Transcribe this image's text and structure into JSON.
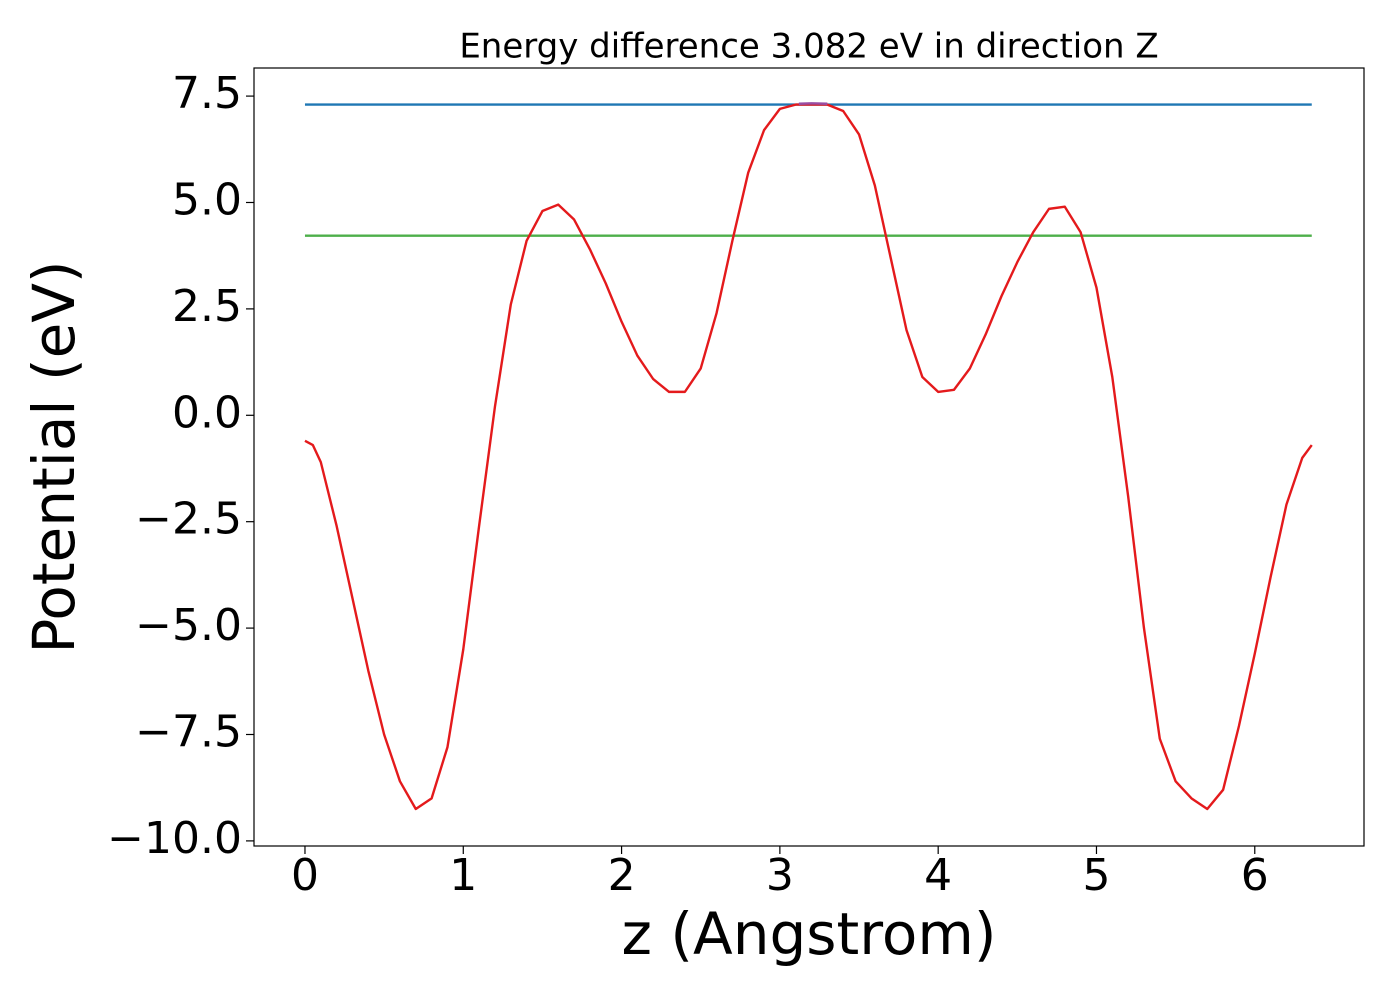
{
  "chart_data": {
    "type": "line",
    "title": "Energy difference 3.082 eV in direction Z",
    "x_label": "z (Angstrom)",
    "y_label": "Potential (eV)",
    "xlim": [
      -0.322,
      6.69
    ],
    "ylim": [
      -10.12,
      8.16
    ],
    "xticks": [
      0,
      1,
      2,
      3,
      4,
      5,
      6
    ],
    "yticks": [
      {
        "value": -10,
        "label": "−10.0"
      },
      {
        "value": -7.5,
        "label": "−7.5"
      },
      {
        "value": -5,
        "label": "−5.0"
      },
      {
        "value": -2.5,
        "label": "−2.5"
      },
      {
        "value": 0,
        "label": "0.0"
      },
      2.5,
      {
        "value": 5,
        "label": "5.0"
      },
      7.5
    ],
    "grid": false,
    "series": [
      {
        "color": "#1f77b4",
        "x": [
          0,
          6.36
        ],
        "values": [
          7.3,
          7.3
        ]
      },
      {
        "color": "#4daf4a",
        "x": [
          0,
          6.36
        ],
        "values": [
          4.22,
          4.22
        ]
      },
      {
        "color": "#e41a1c",
        "x": [
          0,
          0.05,
          0.1,
          0.2,
          0.3,
          0.4,
          0.5,
          0.6,
          0.7,
          0.8,
          0.9,
          1.0,
          1.1,
          1.2,
          1.3,
          1.4,
          1.5,
          1.6,
          1.7,
          1.8,
          1.9,
          2.0,
          2.1,
          2.2,
          2.3,
          2.4,
          2.5,
          2.6,
          2.7,
          2.8,
          2.9,
          3.0,
          3.1,
          3.2,
          3.3,
          3.4,
          3.5,
          3.6,
          3.7,
          3.8,
          3.9,
          4.0,
          4.1,
          4.2,
          4.3,
          4.4,
          4.5,
          4.6,
          4.7,
          4.8,
          4.9,
          5.0,
          5.1,
          5.2,
          5.3,
          5.4,
          5.5,
          5.6,
          5.7,
          5.8,
          5.9,
          6.0,
          6.1,
          6.2,
          6.3,
          6.36
        ],
        "values": [
          -0.6,
          -0.7,
          -1.1,
          -2.6,
          -4.3,
          -6.0,
          -7.5,
          -8.6,
          -9.25,
          -9.0,
          -7.8,
          -5.5,
          -2.6,
          0.2,
          2.6,
          4.1,
          4.8,
          4.95,
          4.6,
          3.9,
          3.1,
          2.2,
          1.4,
          0.85,
          0.55,
          0.55,
          1.1,
          2.4,
          4.1,
          5.7,
          6.7,
          7.2,
          7.3,
          7.3,
          7.3,
          7.15,
          6.6,
          5.4,
          3.7,
          2.0,
          0.9,
          0.55,
          0.6,
          1.1,
          1.9,
          2.8,
          3.6,
          4.3,
          4.85,
          4.9,
          4.3,
          3.0,
          0.9,
          -1.9,
          -5.0,
          -7.6,
          -8.6,
          -9.0,
          -9.25,
          -8.8,
          -7.3,
          -5.6,
          -3.8,
          -2.1,
          -1.0,
          -0.7
        ]
      },
      {
        "color": "#984ea3",
        "x": [
          3.12,
          3.2,
          3.3
        ],
        "values": [
          7.32,
          7.33,
          7.32
        ]
      }
    ]
  }
}
